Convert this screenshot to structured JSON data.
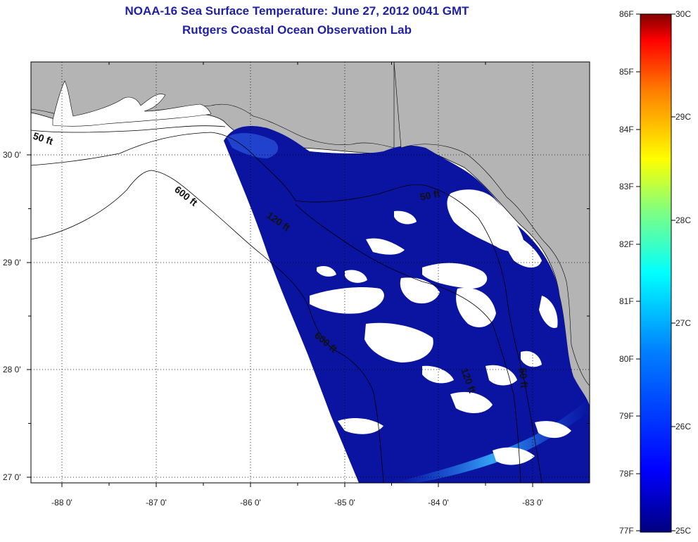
{
  "header": {
    "title": "NOAA-16 Sea Surface Temperature:  June 27, 2012 0041 GMT",
    "subtitle": "Rutgers Coastal Ocean Observation Lab"
  },
  "map": {
    "lon_ticks": [
      "-88 0'",
      "-87 0'",
      "-86 0'",
      "-85 0'",
      "-84 0'",
      "-83 0'"
    ],
    "lat_ticks": [
      "30 0'",
      "29 0'",
      "28 0'",
      "27 0'"
    ],
    "contour_labels": [
      "50 ft",
      "600 ft",
      "120 ft",
      "50 ft",
      "600 ft",
      "120 ft",
      "50 ft"
    ],
    "colors": {
      "land": "#b4b4b4",
      "water": "#0a14a0",
      "cloud": "#ffffff"
    }
  },
  "colorbar": {
    "f_labels": [
      "86F",
      "85F",
      "84F",
      "83F",
      "82F",
      "81F",
      "80F",
      "79F",
      "78F",
      "77F"
    ],
    "c_labels": [
      "30C",
      "29C",
      "28C",
      "27C",
      "26C",
      "25C"
    ],
    "colors": [
      "#800000",
      "#ff0000",
      "#ff8000",
      "#ffff00",
      "#80ff80",
      "#00ffff",
      "#0080ff",
      "#0000ff",
      "#000080"
    ]
  }
}
